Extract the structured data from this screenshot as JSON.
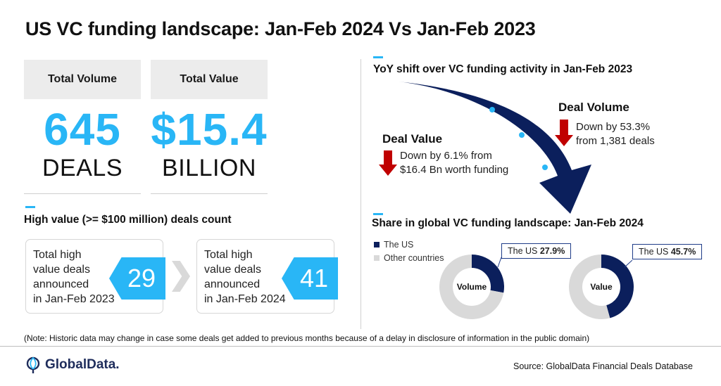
{
  "title": "US VC funding landscape: Jan-Feb 2024 Vs Jan-Feb 2023",
  "stats": [
    {
      "header": "Total Volume",
      "value": "645",
      "unit": "DEALS"
    },
    {
      "header": "Total Value",
      "value": "$15.4",
      "unit": "BILLION"
    }
  ],
  "high_value": {
    "section_title": "High value (>= $100 million) deals count",
    "cards": [
      {
        "text_lines": [
          "Total high",
          "value deals",
          "announced",
          "in Jan-Feb 2023"
        ],
        "count": "29"
      },
      {
        "text_lines": [
          "Total high",
          "value deals",
          "announced",
          "in Jan-Feb 2024"
        ],
        "count": "41"
      }
    ]
  },
  "yoy": {
    "section_title": "YoY shift over VC funding activity in Jan-Feb 2023",
    "deal_value": {
      "heading": "Deal Value",
      "lines": [
        "Down by 6.1% from",
        "$16.4 Bn worth funding"
      ]
    },
    "deal_volume": {
      "heading": "Deal Volume",
      "lines": [
        "Down by 53.3%",
        "from 1,381 deals"
      ]
    }
  },
  "share": {
    "section_title": "Share in global VC funding landscape: Jan-Feb 2024",
    "legend": [
      "The US",
      "Other countries"
    ]
  },
  "chart_data": [
    {
      "type": "pie",
      "center_label": "Volume",
      "callout_prefix": "The US ",
      "callout_value": "27.9%",
      "slices": [
        {
          "label": "The US",
          "value": 27.9
        },
        {
          "label": "Other countries",
          "value": 72.1
        }
      ]
    },
    {
      "type": "pie",
      "center_label": "Value",
      "callout_prefix": "The US ",
      "callout_value": "45.7%",
      "slices": [
        {
          "label": "The US",
          "value": 45.7
        },
        {
          "label": "Other countries",
          "value": 54.3
        }
      ]
    }
  ],
  "colors": {
    "accent": "#29b6f6",
    "navy": "#0b1f5c",
    "down_arrow": "#c00000",
    "other": "#d9d9d9"
  },
  "footer": {
    "note": "(Note: Historic data may change in case some deals get added to previous months  because of a delay in disclosure of information in the public domain)",
    "brand": "GlobalData.",
    "source": "Source: GlobalData Financial Deals Database"
  }
}
